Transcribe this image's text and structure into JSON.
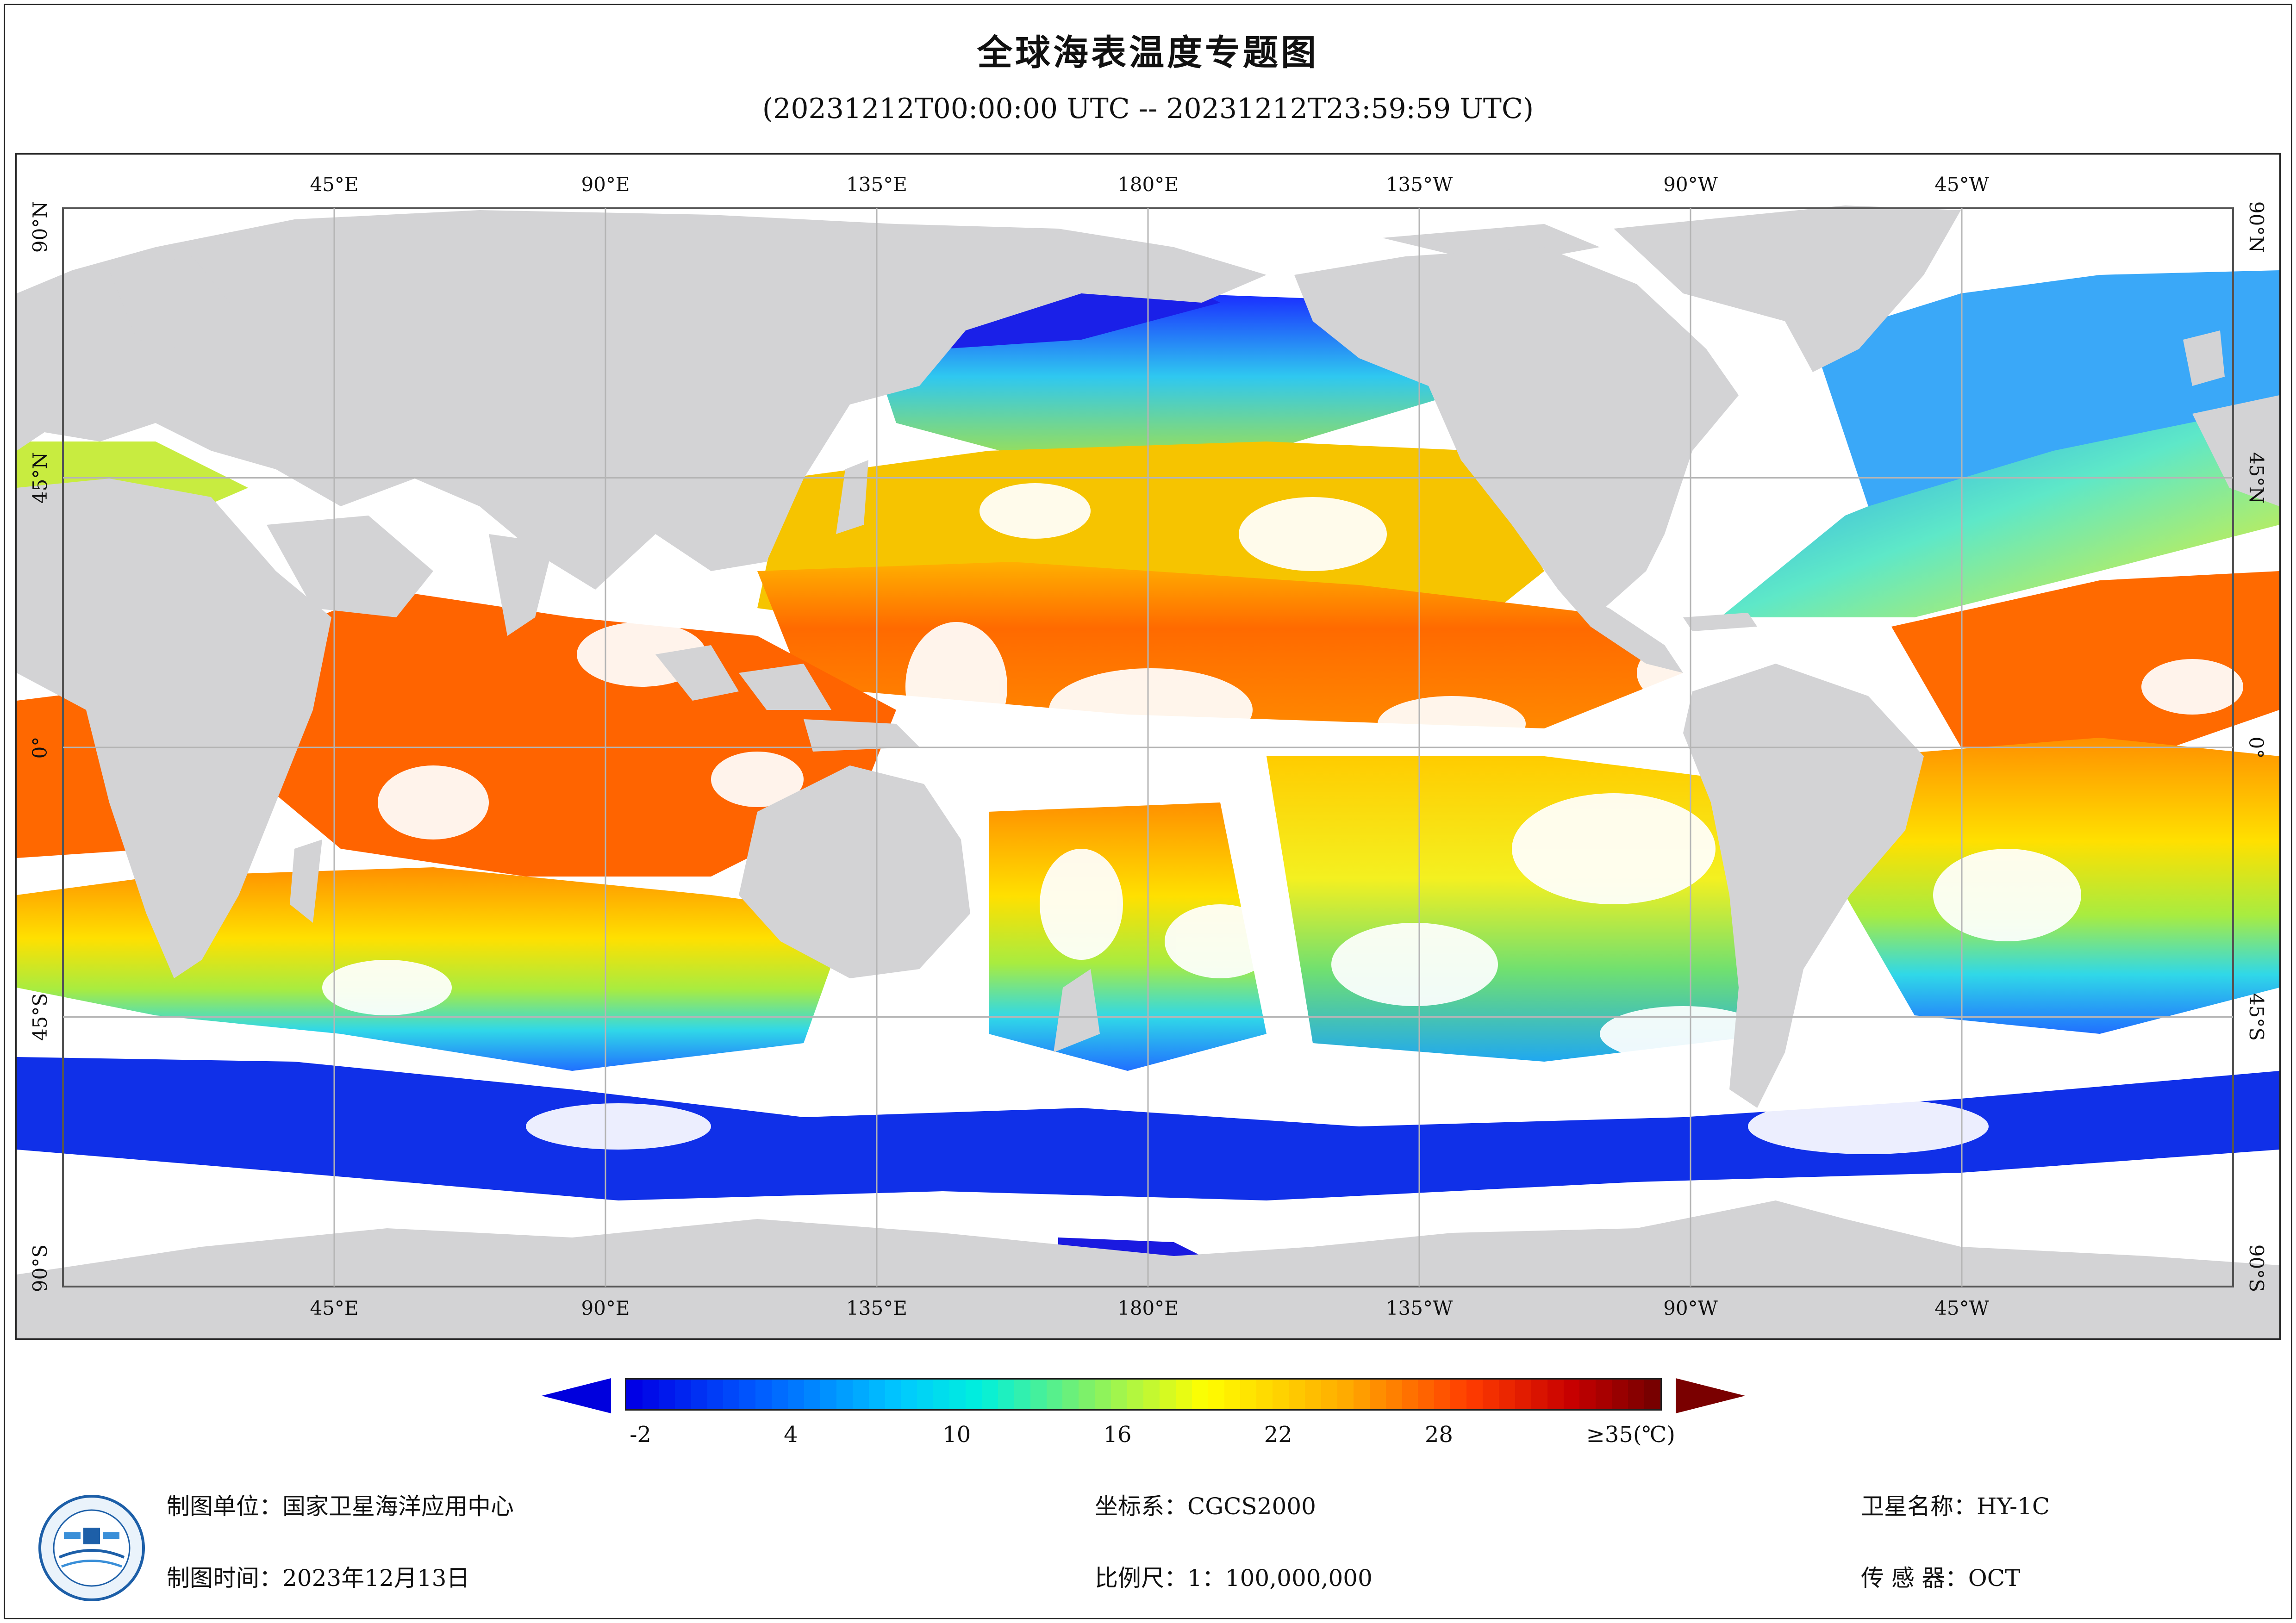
{
  "header": {
    "title": "全球海表温度专题图",
    "subtitle": "(20231212T00:00:00 UTC -- 20231212T23:59:59 UTC)"
  },
  "map": {
    "lon_labels": [
      "45°E",
      "90°E",
      "135°E",
      "180°E",
      "135°W",
      "90°W",
      "45°W"
    ],
    "lat_labels": [
      "90°N",
      "45°N",
      "0°",
      "45°S",
      "90°S"
    ],
    "colors": {
      "land": "#d3d3d5",
      "no_data": "#ffffff",
      "grid": "#b5b5b5"
    }
  },
  "legend": {
    "ticks": [
      "-2",
      "4",
      "10",
      "16",
      "22",
      "28",
      "≥35(℃)"
    ],
    "min_value": -2,
    "max_value": 35,
    "unit": "℃",
    "under_color": "#0000dd",
    "over_color": "#7a0000"
  },
  "info": {
    "producer": "制图单位：国家卫星海洋应用中心",
    "date": "制图时间：2023年12月13日",
    "crs": "坐标系：CGCS2000",
    "scale": "比例尺：1：100,000,000",
    "satellite": "卫星名称：HY-1C",
    "sensor": "传 感 器：OCT"
  },
  "logo": {
    "icon": "nsoas-logo-icon"
  }
}
